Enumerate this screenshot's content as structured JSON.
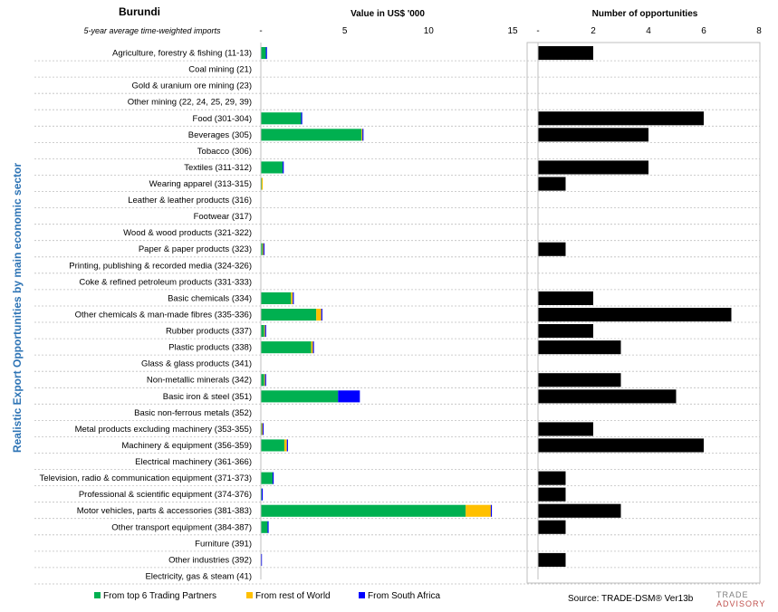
{
  "header": {
    "country": "Burundi",
    "subtitle": "5-year average time-weighted imports",
    "value_title": "Value in US$ '000",
    "opps_title": "Number of opportunities"
  },
  "side_label": "Realistic Export Opportunities by main economic sector",
  "legend": [
    {
      "label": "From top 6 Trading Partners",
      "color": "#00b050"
    },
    {
      "label": "From rest of World",
      "color": "#ffc000"
    },
    {
      "label": "From South Africa",
      "color": "#0000ff"
    }
  ],
  "source": "Source: TRADE-DSM®  Ver13b",
  "logo": {
    "line1": "TRADE",
    "line2": "ADVISORY"
  },
  "chart_data": [
    {
      "type": "bar",
      "orientation": "horizontal",
      "stacked": true,
      "title": "Value in US$ '000",
      "xlim": [
        0,
        15
      ],
      "ticks": [
        "-",
        "5",
        "10",
        "15"
      ],
      "tick_values": [
        0,
        5,
        10,
        15
      ],
      "grid": false,
      "legend_position": "bottom",
      "categories": [
        "Agriculture, forestry & fishing (11-13)",
        "Coal mining (21)",
        "Gold & uranium ore mining (23)",
        "Other mining (22, 24, 25, 29, 39)",
        "Food (301-304)",
        "Beverages (305)",
        "Tobacco (306)",
        "Textiles (311-312)",
        "Wearing apparel (313-315)",
        "Leather & leather products (316)",
        "Footwear (317)",
        "Wood & wood products (321-322)",
        "Paper & paper products (323)",
        "Printing, publishing & recorded media (324-326)",
        "Coke & refined petroleum products (331-333)",
        "Basic chemicals (334)",
        "Other chemicals & man-made fibres (335-336)",
        "Rubber products (337)",
        "Plastic products (338)",
        "Glass & glass products (341)",
        "Non-metallic minerals (342)",
        "Basic iron & steel (351)",
        "Basic non-ferrous metals (352)",
        "Metal products excluding machinery (353-355)",
        "Machinery & equipment (356-359)",
        "Electrical machinery (361-366)",
        "Television, radio & communication equipment (371-373)",
        "Professional & scientific equipment (374-376)",
        "Motor vehicles, parts & accessories (381-383)",
        "Other transport equipment (384-387)",
        "Furniture (391)",
        "Other industries (392)",
        "Electricity, gas & steam (41)"
      ],
      "series": [
        {
          "name": "From top 6 Trading Partners",
          "color": "#00b050",
          "values": [
            0.3,
            0,
            0,
            0,
            2.4,
            6.0,
            0,
            1.3,
            0.05,
            0,
            0,
            0,
            0.1,
            0,
            0,
            1.8,
            3.3,
            0.2,
            3.0,
            0,
            0.2,
            4.6,
            0,
            0.05,
            1.4,
            0,
            0.7,
            0.05,
            12.2,
            0.4,
            0,
            0,
            0
          ]
        },
        {
          "name": "From rest of World",
          "color": "#ffc000",
          "values": [
            0,
            0,
            0,
            0,
            0,
            0.05,
            0,
            0,
            0.05,
            0,
            0,
            0,
            0.05,
            0,
            0,
            0.1,
            0.3,
            0.05,
            0.1,
            0,
            0.05,
            0,
            0,
            0.05,
            0.15,
            0,
            0,
            0,
            1.5,
            0,
            0,
            0,
            0
          ]
        },
        {
          "name": "From South Africa",
          "color": "#0000ff",
          "values": [
            0.05,
            0,
            0,
            0,
            0.05,
            0.05,
            0,
            0.05,
            0,
            0,
            0,
            0,
            0.05,
            0,
            0,
            0.05,
            0.05,
            0.05,
            0.05,
            0,
            0.05,
            1.3,
            0,
            0.02,
            0.05,
            0,
            0.05,
            0.05,
            0.05,
            0.05,
            0,
            0.05,
            0
          ]
        }
      ]
    },
    {
      "type": "bar",
      "orientation": "horizontal",
      "title": "Number of opportunities",
      "xlim": [
        0,
        8
      ],
      "ticks": [
        "-",
        "2",
        "4",
        "6",
        "8"
      ],
      "tick_values": [
        0,
        2,
        4,
        6,
        8
      ],
      "grid": false,
      "color": "#000000",
      "values": [
        2,
        0,
        0,
        0,
        6,
        4,
        0,
        4,
        1,
        0,
        0,
        0,
        1,
        0,
        0,
        2,
        7,
        2,
        3,
        0,
        3,
        5,
        0,
        2,
        6,
        0,
        1,
        1,
        3,
        1,
        0,
        1,
        0
      ]
    }
  ]
}
